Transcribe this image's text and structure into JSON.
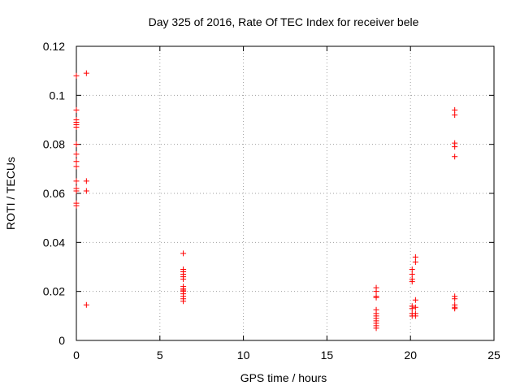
{
  "chart_data": {
    "type": "scatter",
    "title": "Day 325 of 2016, Rate Of TEC Index for receiver bele",
    "xlabel": "GPS time / hours",
    "ylabel": "ROTI / TECUs",
    "xlim": [
      0,
      25
    ],
    "ylim": [
      0,
      0.12
    ],
    "xticks": [
      0,
      5,
      10,
      15,
      20,
      25
    ],
    "xtick_labels": [
      "0",
      "5",
      "10",
      "15",
      "20",
      "25"
    ],
    "yticks": [
      0,
      0.02,
      0.04,
      0.06,
      0.08,
      0.1,
      0.12
    ],
    "ytick_labels": [
      "0",
      "0.02",
      "0.04",
      "0.06",
      "0.08",
      "0.1",
      "0.12"
    ],
    "grid": true,
    "marker": "+",
    "color": "#ff0000",
    "series": [
      {
        "name": "ROTI",
        "points": [
          [
            0.0,
            0.108
          ],
          [
            0.0,
            0.094
          ],
          [
            0.0,
            0.09
          ],
          [
            0.0,
            0.089
          ],
          [
            0.0,
            0.088
          ],
          [
            0.0,
            0.087
          ],
          [
            0.0,
            0.08
          ],
          [
            0.0,
            0.076
          ],
          [
            0.0,
            0.073
          ],
          [
            0.0,
            0.071
          ],
          [
            0.0,
            0.065
          ],
          [
            0.0,
            0.062
          ],
          [
            0.0,
            0.061
          ],
          [
            0.0,
            0.056
          ],
          [
            0.0,
            0.055
          ],
          [
            0.6,
            0.109
          ],
          [
            0.6,
            0.065
          ],
          [
            0.6,
            0.061
          ],
          [
            0.6,
            0.0145
          ],
          [
            6.4,
            0.0355
          ],
          [
            6.4,
            0.029
          ],
          [
            6.4,
            0.028
          ],
          [
            6.4,
            0.027
          ],
          [
            6.4,
            0.026
          ],
          [
            6.4,
            0.025
          ],
          [
            6.4,
            0.022
          ],
          [
            6.4,
            0.021
          ],
          [
            6.4,
            0.0205
          ],
          [
            6.4,
            0.02
          ],
          [
            6.4,
            0.019
          ],
          [
            6.4,
            0.018
          ],
          [
            6.4,
            0.017
          ],
          [
            6.4,
            0.016
          ],
          [
            17.95,
            0.0215
          ],
          [
            17.95,
            0.02
          ],
          [
            17.95,
            0.018
          ],
          [
            17.95,
            0.0175
          ],
          [
            17.95,
            0.0125
          ],
          [
            17.95,
            0.011
          ],
          [
            17.95,
            0.01
          ],
          [
            17.95,
            0.009
          ],
          [
            17.95,
            0.008
          ],
          [
            17.95,
            0.007
          ],
          [
            17.95,
            0.006
          ],
          [
            17.95,
            0.005
          ],
          [
            20.1,
            0.029
          ],
          [
            20.1,
            0.027
          ],
          [
            20.1,
            0.025
          ],
          [
            20.1,
            0.024
          ],
          [
            20.1,
            0.014
          ],
          [
            20.1,
            0.013
          ],
          [
            20.1,
            0.011
          ],
          [
            20.1,
            0.01
          ],
          [
            20.3,
            0.034
          ],
          [
            20.3,
            0.032
          ],
          [
            20.3,
            0.0165
          ],
          [
            20.3,
            0.0135
          ],
          [
            20.3,
            0.011
          ],
          [
            20.3,
            0.01
          ],
          [
            22.65,
            0.094
          ],
          [
            22.65,
            0.092
          ],
          [
            22.65,
            0.0805
          ],
          [
            22.65,
            0.079
          ],
          [
            22.65,
            0.075
          ],
          [
            22.65,
            0.018
          ],
          [
            22.65,
            0.017
          ],
          [
            22.65,
            0.0145
          ],
          [
            22.65,
            0.0135
          ],
          [
            22.65,
            0.013
          ]
        ]
      }
    ]
  }
}
